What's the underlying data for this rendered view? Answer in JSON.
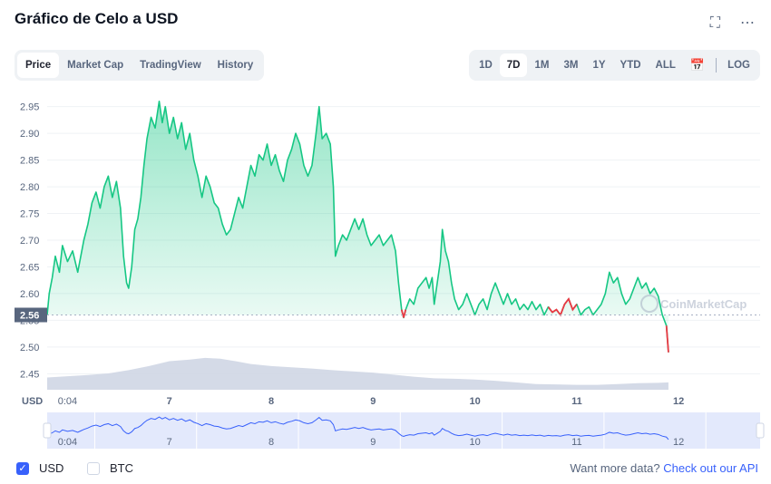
{
  "page": {
    "title": "Gráfico de Celo a USD",
    "expand_icon": "expand-icon",
    "more_icon": "more-options-icon"
  },
  "tabs": [
    {
      "label": "Price",
      "active": true
    },
    {
      "label": "Market Cap",
      "active": false
    },
    {
      "label": "TradingView",
      "active": false
    },
    {
      "label": "History",
      "active": false
    }
  ],
  "ranges": [
    {
      "label": "1D",
      "active": false
    },
    {
      "label": "7D",
      "active": true
    },
    {
      "label": "1M",
      "active": false
    },
    {
      "label": "3M",
      "active": false
    },
    {
      "label": "1Y",
      "active": false
    },
    {
      "label": "YTD",
      "active": false
    },
    {
      "label": "ALL",
      "active": false
    }
  ],
  "calendar_icon": "calendar-icon",
  "log_label": "LOG",
  "chart_data": {
    "type": "area",
    "ylabel": "USD",
    "ylim": [
      2.42,
      2.98
    ],
    "yticks": [
      2.45,
      2.5,
      2.55,
      2.6,
      2.65,
      2.7,
      2.75,
      2.8,
      2.85,
      2.9,
      2.95
    ],
    "ytick_labels": [
      "2.45",
      "2.50",
      "2.55",
      "2.60",
      "2.65",
      "2.70",
      "2.75",
      "2.80",
      "2.85",
      "2.90",
      "2.95"
    ],
    "xlim": [
      0,
      7.0
    ],
    "xticks": [
      0.2,
      1.2,
      2.2,
      3.2,
      4.2,
      5.2,
      6.2
    ],
    "xtick_labels": [
      "0:04",
      "7",
      "8",
      "9",
      "10",
      "11",
      "12"
    ],
    "current_price": 2.56,
    "current_price_label": "2.56",
    "watermark": "CoinMarketCap",
    "grid": true,
    "colors": {
      "up": "#16c784",
      "down": "#ea3943",
      "volume": "#cfd6e4",
      "navigator_fill": "#e3e9fc",
      "navigator_line": "#3861fb"
    },
    "series": [
      {
        "values": [
          [
            0.0,
            2.56
          ],
          [
            0.02,
            2.6
          ],
          [
            0.05,
            2.63
          ],
          [
            0.08,
            2.67
          ],
          [
            0.12,
            2.64
          ],
          [
            0.15,
            2.69
          ],
          [
            0.2,
            2.66
          ],
          [
            0.25,
            2.68
          ],
          [
            0.3,
            2.64
          ],
          [
            0.33,
            2.67
          ],
          [
            0.36,
            2.7
          ],
          [
            0.4,
            2.73
          ],
          [
            0.44,
            2.77
          ],
          [
            0.48,
            2.79
          ],
          [
            0.52,
            2.76
          ],
          [
            0.56,
            2.8
          ],
          [
            0.6,
            2.82
          ],
          [
            0.64,
            2.78
          ],
          [
            0.68,
            2.81
          ],
          [
            0.72,
            2.76
          ],
          [
            0.75,
            2.67
          ],
          [
            0.78,
            2.62
          ],
          [
            0.8,
            2.61
          ],
          [
            0.83,
            2.65
          ],
          [
            0.86,
            2.72
          ],
          [
            0.89,
            2.74
          ],
          [
            0.92,
            2.78
          ],
          [
            0.95,
            2.84
          ],
          [
            0.98,
            2.89
          ],
          [
            1.02,
            2.93
          ],
          [
            1.06,
            2.91
          ],
          [
            1.1,
            2.96
          ],
          [
            1.13,
            2.92
          ],
          [
            1.16,
            2.95
          ],
          [
            1.2,
            2.9
          ],
          [
            1.24,
            2.93
          ],
          [
            1.28,
            2.89
          ],
          [
            1.32,
            2.92
          ],
          [
            1.36,
            2.87
          ],
          [
            1.4,
            2.9
          ],
          [
            1.44,
            2.85
          ],
          [
            1.48,
            2.82
          ],
          [
            1.52,
            2.78
          ],
          [
            1.56,
            2.82
          ],
          [
            1.6,
            2.8
          ],
          [
            1.64,
            2.77
          ],
          [
            1.68,
            2.76
          ],
          [
            1.72,
            2.73
          ],
          [
            1.76,
            2.71
          ],
          [
            1.8,
            2.72
          ],
          [
            1.84,
            2.75
          ],
          [
            1.88,
            2.78
          ],
          [
            1.92,
            2.76
          ],
          [
            1.96,
            2.8
          ],
          [
            2.0,
            2.84
          ],
          [
            2.04,
            2.82
          ],
          [
            2.08,
            2.86
          ],
          [
            2.12,
            2.85
          ],
          [
            2.16,
            2.88
          ],
          [
            2.2,
            2.84
          ],
          [
            2.24,
            2.86
          ],
          [
            2.28,
            2.83
          ],
          [
            2.32,
            2.81
          ],
          [
            2.36,
            2.85
          ],
          [
            2.4,
            2.87
          ],
          [
            2.44,
            2.9
          ],
          [
            2.48,
            2.88
          ],
          [
            2.52,
            2.84
          ],
          [
            2.56,
            2.82
          ],
          [
            2.6,
            2.84
          ],
          [
            2.64,
            2.9
          ],
          [
            2.67,
            2.95
          ],
          [
            2.7,
            2.89
          ],
          [
            2.74,
            2.9
          ],
          [
            2.78,
            2.88
          ],
          [
            2.81,
            2.8
          ],
          [
            2.83,
            2.67
          ],
          [
            2.86,
            2.69
          ],
          [
            2.9,
            2.71
          ],
          [
            2.94,
            2.7
          ],
          [
            2.98,
            2.72
          ],
          [
            3.02,
            2.74
          ],
          [
            3.06,
            2.72
          ],
          [
            3.1,
            2.74
          ],
          [
            3.14,
            2.71
          ],
          [
            3.18,
            2.69
          ],
          [
            3.22,
            2.7
          ],
          [
            3.26,
            2.71
          ],
          [
            3.3,
            2.69
          ],
          [
            3.34,
            2.7
          ],
          [
            3.38,
            2.71
          ],
          [
            3.42,
            2.68
          ],
          [
            3.45,
            2.62
          ],
          [
            3.48,
            2.57
          ],
          [
            3.5,
            2.555
          ],
          [
            3.52,
            2.57
          ],
          [
            3.56,
            2.59
          ],
          [
            3.6,
            2.58
          ],
          [
            3.64,
            2.61
          ],
          [
            3.68,
            2.62
          ],
          [
            3.72,
            2.63
          ],
          [
            3.75,
            2.61
          ],
          [
            3.78,
            2.63
          ],
          [
            3.8,
            2.58
          ],
          [
            3.83,
            2.62
          ],
          [
            3.86,
            2.66
          ],
          [
            3.88,
            2.72
          ],
          [
            3.91,
            2.68
          ],
          [
            3.94,
            2.66
          ],
          [
            3.97,
            2.62
          ],
          [
            4.0,
            2.59
          ],
          [
            4.04,
            2.57
          ],
          [
            4.08,
            2.58
          ],
          [
            4.12,
            2.6
          ],
          [
            4.16,
            2.58
          ],
          [
            4.2,
            2.56
          ],
          [
            4.24,
            2.58
          ],
          [
            4.28,
            2.59
          ],
          [
            4.32,
            2.57
          ],
          [
            4.36,
            2.6
          ],
          [
            4.4,
            2.62
          ],
          [
            4.44,
            2.6
          ],
          [
            4.48,
            2.58
          ],
          [
            4.52,
            2.6
          ],
          [
            4.56,
            2.58
          ],
          [
            4.6,
            2.59
          ],
          [
            4.64,
            2.57
          ],
          [
            4.68,
            2.58
          ],
          [
            4.72,
            2.57
          ],
          [
            4.76,
            2.585
          ],
          [
            4.8,
            2.57
          ],
          [
            4.84,
            2.58
          ],
          [
            4.88,
            2.56
          ],
          [
            4.92,
            2.575
          ],
          [
            4.96,
            2.565
          ],
          [
            5.0,
            2.57
          ],
          [
            5.04,
            2.56
          ],
          [
            5.08,
            2.58
          ],
          [
            5.12,
            2.59
          ],
          [
            5.16,
            2.57
          ],
          [
            5.2,
            2.58
          ],
          [
            5.24,
            2.56
          ],
          [
            5.28,
            2.57
          ],
          [
            5.32,
            2.575
          ],
          [
            5.36,
            2.56
          ],
          [
            5.4,
            2.57
          ],
          [
            5.44,
            2.58
          ],
          [
            5.48,
            2.6
          ],
          [
            5.52,
            2.64
          ],
          [
            5.56,
            2.62
          ],
          [
            5.6,
            2.63
          ],
          [
            5.64,
            2.6
          ],
          [
            5.68,
            2.58
          ],
          [
            5.72,
            2.59
          ],
          [
            5.76,
            2.61
          ],
          [
            5.8,
            2.63
          ],
          [
            5.84,
            2.61
          ],
          [
            5.88,
            2.62
          ],
          [
            5.92,
            2.6
          ],
          [
            5.96,
            2.61
          ],
          [
            6.0,
            2.595
          ],
          [
            6.04,
            2.56
          ],
          [
            6.08,
            2.54
          ],
          [
            6.1,
            2.49
          ]
        ]
      }
    ],
    "red_segments": [
      [
        3.48,
        3.52
      ],
      [
        4.92,
        5.2
      ],
      [
        6.06,
        6.1
      ]
    ],
    "volume": [
      [
        0.0,
        0.3
      ],
      [
        0.2,
        0.33
      ],
      [
        0.4,
        0.36
      ],
      [
        0.6,
        0.4
      ],
      [
        0.8,
        0.48
      ],
      [
        1.0,
        0.58
      ],
      [
        1.2,
        0.7
      ],
      [
        1.4,
        0.74
      ],
      [
        1.55,
        0.78
      ],
      [
        1.7,
        0.76
      ],
      [
        1.85,
        0.7
      ],
      [
        2.0,
        0.63
      ],
      [
        2.2,
        0.58
      ],
      [
        2.4,
        0.55
      ],
      [
        2.6,
        0.52
      ],
      [
        2.8,
        0.48
      ],
      [
        3.0,
        0.45
      ],
      [
        3.2,
        0.42
      ],
      [
        3.4,
        0.37
      ],
      [
        3.6,
        0.32
      ],
      [
        3.8,
        0.28
      ],
      [
        4.0,
        0.27
      ],
      [
        4.2,
        0.25
      ],
      [
        4.4,
        0.22
      ],
      [
        4.6,
        0.18
      ],
      [
        4.8,
        0.14
      ],
      [
        5.0,
        0.13
      ],
      [
        5.2,
        0.12
      ],
      [
        5.4,
        0.12
      ],
      [
        5.6,
        0.14
      ],
      [
        5.8,
        0.16
      ],
      [
        6.0,
        0.17
      ],
      [
        6.1,
        0.18
      ]
    ]
  },
  "footer": {
    "usd_label": "USD",
    "btc_label": "BTC",
    "more_text": "Want more data?",
    "api_link": "Check out our API"
  }
}
